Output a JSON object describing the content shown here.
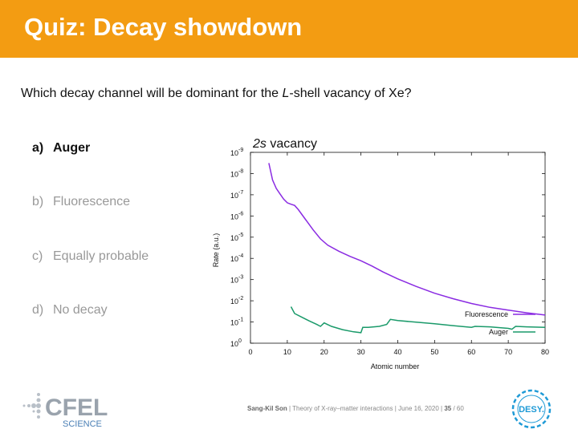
{
  "header": {
    "title": "Quiz: Decay showdown"
  },
  "question": {
    "prefix": "Which decay channel will be dominant for the ",
    "italic": "L",
    "suffix": "-shell vacancy of Xe?"
  },
  "options": [
    {
      "letter": "a)",
      "text": "Auger",
      "selected": true
    },
    {
      "letter": "b)",
      "text": "Fluorescence",
      "selected": false
    },
    {
      "letter": "c)",
      "text": "Equally probable",
      "selected": false
    },
    {
      "letter": "d)",
      "text": "No decay",
      "selected": false
    }
  ],
  "chart_data": {
    "type": "line",
    "title_italic": "2s",
    "title_rest": " vacancy",
    "xlabel": "Atomic number",
    "ylabel": "Rate (a.u.)",
    "xlim": [
      0,
      80
    ],
    "xticks": [
      0,
      10,
      20,
      30,
      40,
      50,
      60,
      70,
      80
    ],
    "ylog": true,
    "ylim_exp": [
      -9,
      0
    ],
    "yticks_exp": [
      0,
      -1,
      -2,
      -3,
      -4,
      -5,
      -6,
      -7,
      -8,
      -9
    ],
    "grid": false,
    "legend_position": "bottom-right",
    "series": [
      {
        "name": "Fluorescence",
        "color": "#8a2be2",
        "x": [
          5,
          6,
          7,
          8,
          9,
          10,
          11,
          12,
          13,
          15,
          17,
          19,
          21,
          24,
          27,
          30,
          33,
          36,
          40,
          45,
          50,
          55,
          60,
          65,
          70,
          75,
          80
        ],
        "y": [
          3.2e-09,
          2e-08,
          5e-08,
          9e-08,
          1.6e-07,
          2.4e-07,
          2.8e-07,
          3.2e-07,
          5e-07,
          1.5e-06,
          4.5e-06,
          1.2e-05,
          2.4e-05,
          4.6e-05,
          8e-05,
          0.00013,
          0.00023,
          0.00044,
          0.00093,
          0.0021,
          0.0044,
          0.008,
          0.0134,
          0.0204,
          0.0275,
          0.037,
          0.047
        ]
      },
      {
        "name": "Auger",
        "color": "#1a9a6a",
        "x": [
          11,
          12,
          14,
          16,
          18,
          19,
          20,
          22,
          25,
          28,
          30,
          30.5,
          32,
          35,
          37,
          38,
          40,
          45,
          50,
          55,
          60,
          61,
          65,
          70,
          71,
          72,
          75,
          80
        ],
        "y": [
          0.019,
          0.04,
          0.06,
          0.09,
          0.13,
          0.16,
          0.11,
          0.16,
          0.23,
          0.29,
          0.32,
          0.18,
          0.18,
          0.16,
          0.13,
          0.075,
          0.085,
          0.102,
          0.122,
          0.148,
          0.178,
          0.16,
          0.17,
          0.2,
          0.22,
          0.16,
          0.17,
          0.18
        ]
      }
    ]
  },
  "footer": {
    "author": "Sang-Kil Son",
    "rest": "  |  Theory of X-ray–matter interactions  |  June 16, 2020  |  ",
    "page": "35",
    "total": " / 60"
  },
  "logos": {
    "cfel_text": "CFEL",
    "cfel_sub": "SCIENCE",
    "desy_text": "DESY."
  }
}
